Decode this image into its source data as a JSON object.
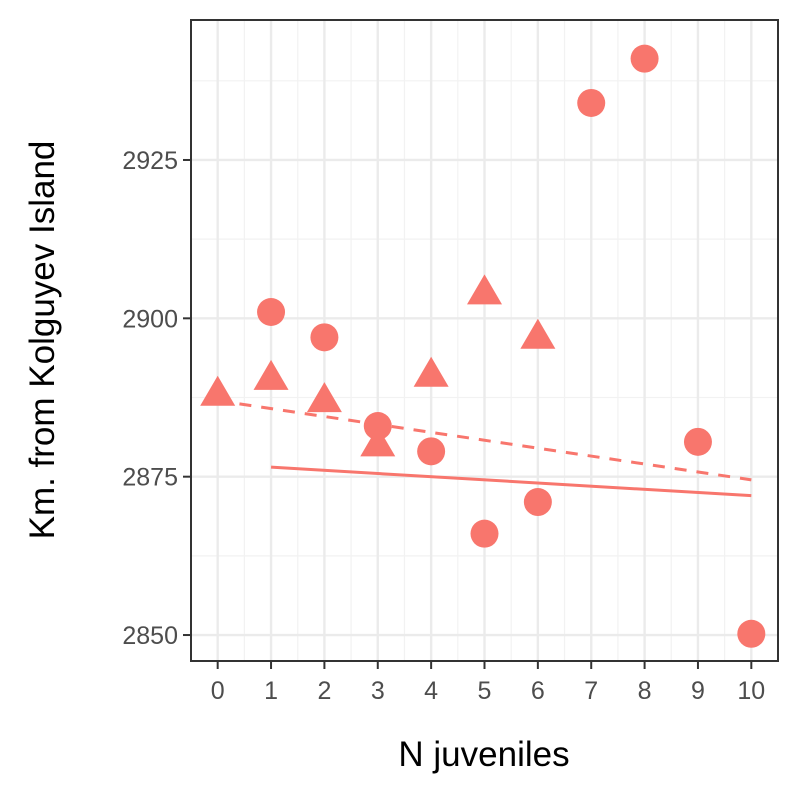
{
  "chart_data": {
    "type": "scatter",
    "title": "",
    "xlabel": "N juveniles",
    "ylabel": "Km. from Kolguyev Island",
    "xlim": [
      -0.5,
      10.5
    ],
    "ylim": [
      2845.9,
      2947.1
    ],
    "x_ticks": [
      0,
      1,
      2,
      3,
      4,
      5,
      6,
      7,
      8,
      9,
      10
    ],
    "y_ticks": [
      2850,
      2875,
      2900,
      2925
    ],
    "x_tick_labels": [
      "0",
      "1",
      "2",
      "3",
      "4",
      "5",
      "6",
      "7",
      "8",
      "9",
      "10"
    ],
    "y_tick_labels": [
      "2850",
      "2875",
      "2900",
      "2925"
    ],
    "grid": true,
    "legend": "none",
    "color": "#F8766D",
    "series": [
      {
        "marker": "circle",
        "points": [
          {
            "x": 1,
            "y": 2901
          },
          {
            "x": 2,
            "y": 2897
          },
          {
            "x": 3,
            "y": 2883
          },
          {
            "x": 4,
            "y": 2879
          },
          {
            "x": 5,
            "y": 2866
          },
          {
            "x": 6,
            "y": 2871
          },
          {
            "x": 7,
            "y": 2934
          },
          {
            "x": 8,
            "y": 2941
          },
          {
            "x": 9,
            "y": 2880.5
          },
          {
            "x": 10,
            "y": 2850.2
          }
        ],
        "trend": {
          "x": [
            1,
            10
          ],
          "y": [
            2876.5,
            2872
          ],
          "style": "solid"
        }
      },
      {
        "marker": "triangle",
        "points": [
          {
            "x": 0,
            "y": 2888
          },
          {
            "x": 1,
            "y": 2890.5
          },
          {
            "x": 2,
            "y": 2887
          },
          {
            "x": 3,
            "y": 2880
          },
          {
            "x": 4,
            "y": 2891
          },
          {
            "x": 5,
            "y": 2904
          },
          {
            "x": 6,
            "y": 2897
          }
        ],
        "trend": {
          "x": [
            0,
            10
          ],
          "y": [
            2887,
            2874.5
          ],
          "style": "dashed"
        }
      }
    ]
  }
}
